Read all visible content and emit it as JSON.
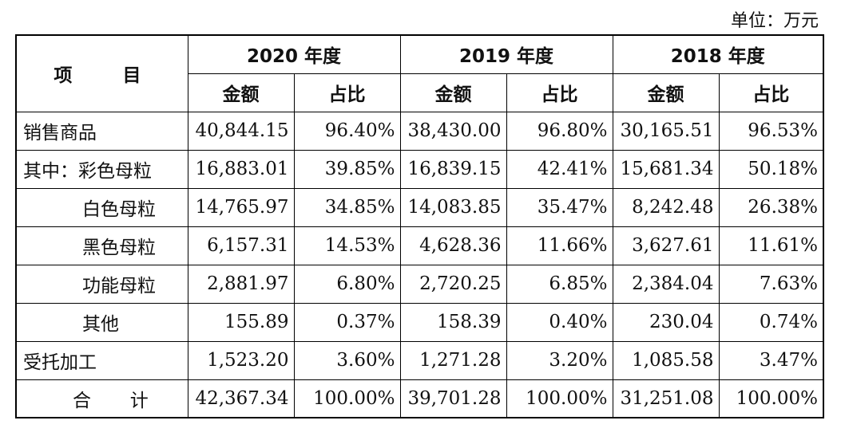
{
  "unit_label": "单位：万元",
  "header": {
    "item": "项 目",
    "years": [
      "2020 年度",
      "2019 年度",
      "2018 年度"
    ],
    "amount": "金额",
    "ratio": "占比"
  },
  "rows": [
    {
      "label": "销售商品",
      "v": [
        "40,844.15",
        "96.40%",
        "38,430.00",
        "96.80%",
        "30,165.51",
        "96.53%"
      ]
    },
    {
      "label": "其中：彩色母粒",
      "v": [
        "16,883.01",
        "39.85%",
        "16,839.15",
        "42.41%",
        "15,681.34",
        "50.18%"
      ]
    },
    {
      "label": "白色母粒",
      "v": [
        "14,765.97",
        "34.85%",
        "14,083.85",
        "35.47%",
        "8,242.48",
        "26.38%"
      ]
    },
    {
      "label": "黑色母粒",
      "v": [
        "6,157.31",
        "14.53%",
        "4,628.36",
        "11.66%",
        "3,627.61",
        "11.61%"
      ]
    },
    {
      "label": "功能母粒",
      "v": [
        "2,881.97",
        "6.80%",
        "2,720.25",
        "6.85%",
        "2,384.04",
        "7.63%"
      ]
    },
    {
      "label": "其他",
      "v": [
        "155.89",
        "0.37%",
        "158.39",
        "0.40%",
        "230.04",
        "0.74%"
      ]
    },
    {
      "label": "受托加工",
      "v": [
        "1,523.20",
        "3.60%",
        "1,271.28",
        "3.20%",
        "1,085.58",
        "3.47%"
      ]
    },
    {
      "label": "合 计",
      "v": [
        "42,367.34",
        "100.00%",
        "39,701.28",
        "100.00%",
        "31,251.08",
        "100.00%"
      ]
    }
  ]
}
